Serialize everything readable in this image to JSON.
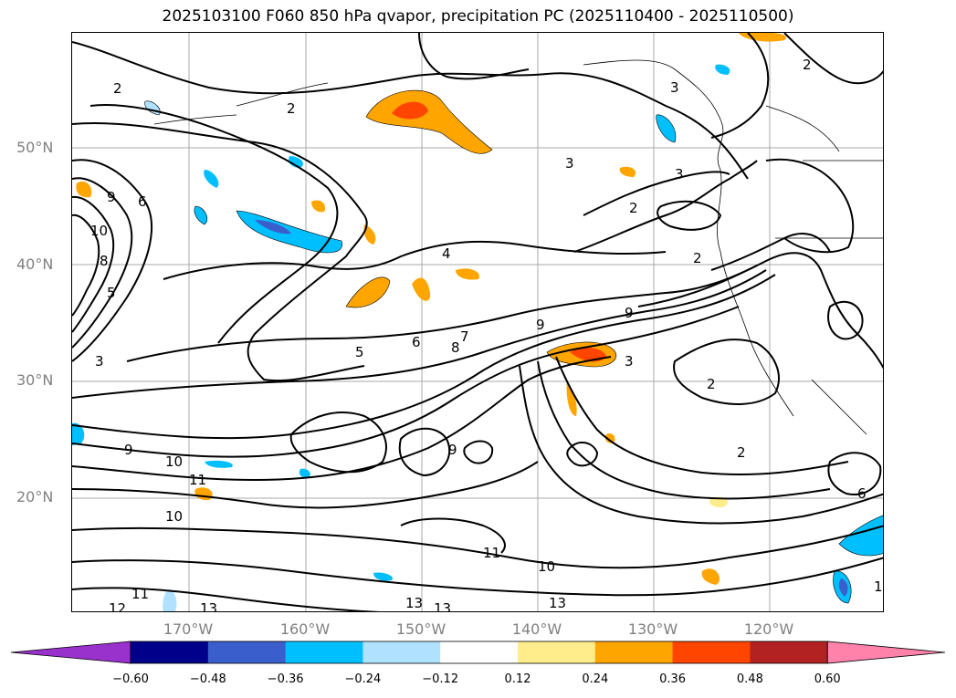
{
  "title": "2025103100 F060 850 hPa qvapor, precipitation PC (2025110400 - 2025110500)",
  "lat_labels": [
    "50°N",
    "40°N",
    "30°N",
    "20°N"
  ],
  "lon_labels": [
    "170°W",
    "160°W",
    "150°W",
    "140°W",
    "130°W",
    "120°W"
  ],
  "contour_labels": {
    "c2a": "2",
    "c2b": "2",
    "c2c": "2",
    "c2d": "2",
    "c2e": "2",
    "c2f": "2",
    "c2g": "2",
    "c3a": "3",
    "c3b": "3",
    "c3c": "3",
    "c3d": "3",
    "c3e": "3",
    "c4": "4",
    "c5a": "5",
    "c5b": "5",
    "c6a": "6",
    "c6b": "6",
    "c7": "7",
    "c8a": "8",
    "c8b": "8",
    "c9a": "9",
    "c9b": "9",
    "c9c": "9",
    "c9d": "9",
    "c9e": "9",
    "c10a": "10",
    "c10b": "10",
    "c10c": "10",
    "c10d": "10",
    "c11a": "11",
    "c11b": "11",
    "c11c": "11",
    "c12": "12",
    "c13a": "13",
    "c13b": "13",
    "c13c": "13",
    "c13d": "13",
    "c1": "1",
    "c6c": "6"
  },
  "colorbar": {
    "colors": [
      "#9932cc",
      "#00008b",
      "#3a5fcd",
      "#00bfff",
      "#b0e2ff",
      "#ffffff",
      "#ffec8b",
      "#ffa500",
      "#ff4500",
      "#b22222",
      "#ff82ab"
    ],
    "ticks": [
      "−0.60",
      "−0.48",
      "−0.36",
      "−0.24",
      "−0.12",
      "0.12",
      "0.24",
      "0.36",
      "0.48",
      "0.60"
    ]
  }
}
